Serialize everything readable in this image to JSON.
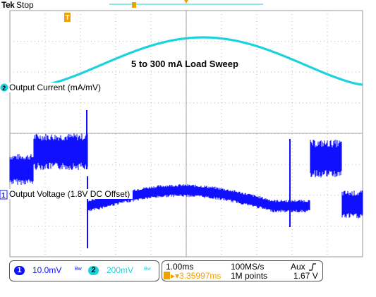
{
  "header": {
    "brand": "Tek",
    "run_state": "Stop"
  },
  "annotation": "5 to 300 mA Load Sweep",
  "channels": [
    {
      "id": "1",
      "label": "Output Voltage (1.8V DC Offset)",
      "scale": "10.0mV",
      "coupling": "Bw",
      "color": "#1010ff"
    },
    {
      "id": "2",
      "label": "Output Current (mA/mV)",
      "scale": "200mV",
      "coupling": "Bw",
      "color": "#1bd3dd"
    }
  ],
  "trigger_marker": "T",
  "timebase": {
    "time_div": "1.00ms",
    "sample_rate": "100MS/s",
    "trigger_source": "Aux",
    "trigger_slope_icon": "rising-edge-icon",
    "trigger_position": "▸▾3.35997ms",
    "record_length": "1M points",
    "trigger_level": "1.67 V"
  },
  "colors": {
    "grid": "#bbbbbb",
    "trigger": "#f0a000"
  }
}
